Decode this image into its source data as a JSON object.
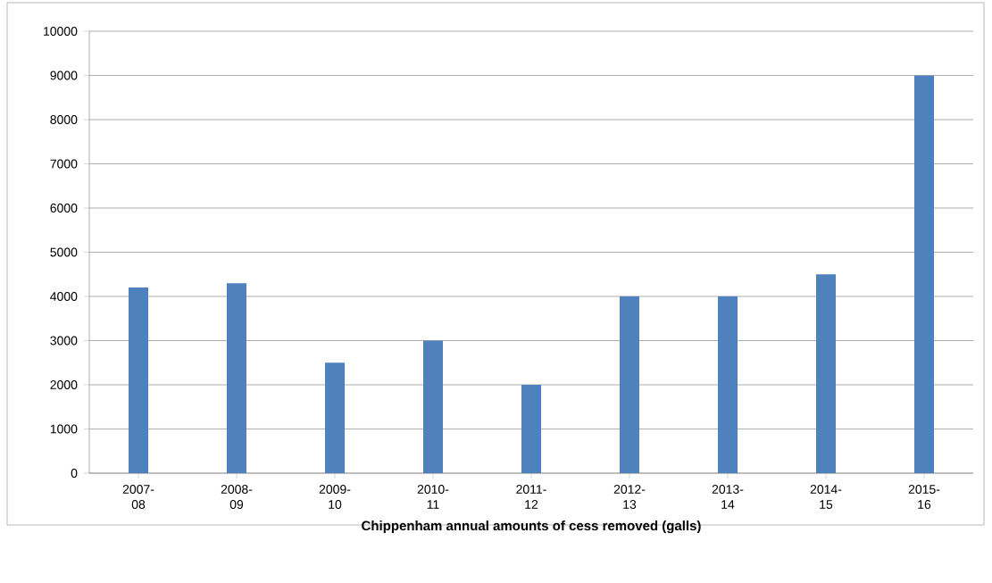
{
  "chart_data": {
    "type": "bar",
    "title": "Chippenham annual amounts of cess removed (galls)",
    "categories": [
      "2007-08",
      "2008-09",
      "2009-10",
      "2010-11",
      "2011-12",
      "2012-13",
      "2013-14",
      "2014-15",
      "2015-16"
    ],
    "values": [
      4200,
      4300,
      2500,
      3000,
      2000,
      4000,
      4000,
      4500,
      9000
    ],
    "color": "#4f81bd",
    "ylim": [
      0,
      10000
    ],
    "yticks": [
      0,
      1000,
      2000,
      3000,
      4000,
      5000,
      6000,
      7000,
      8000,
      9000,
      10000
    ],
    "grid": "y"
  }
}
